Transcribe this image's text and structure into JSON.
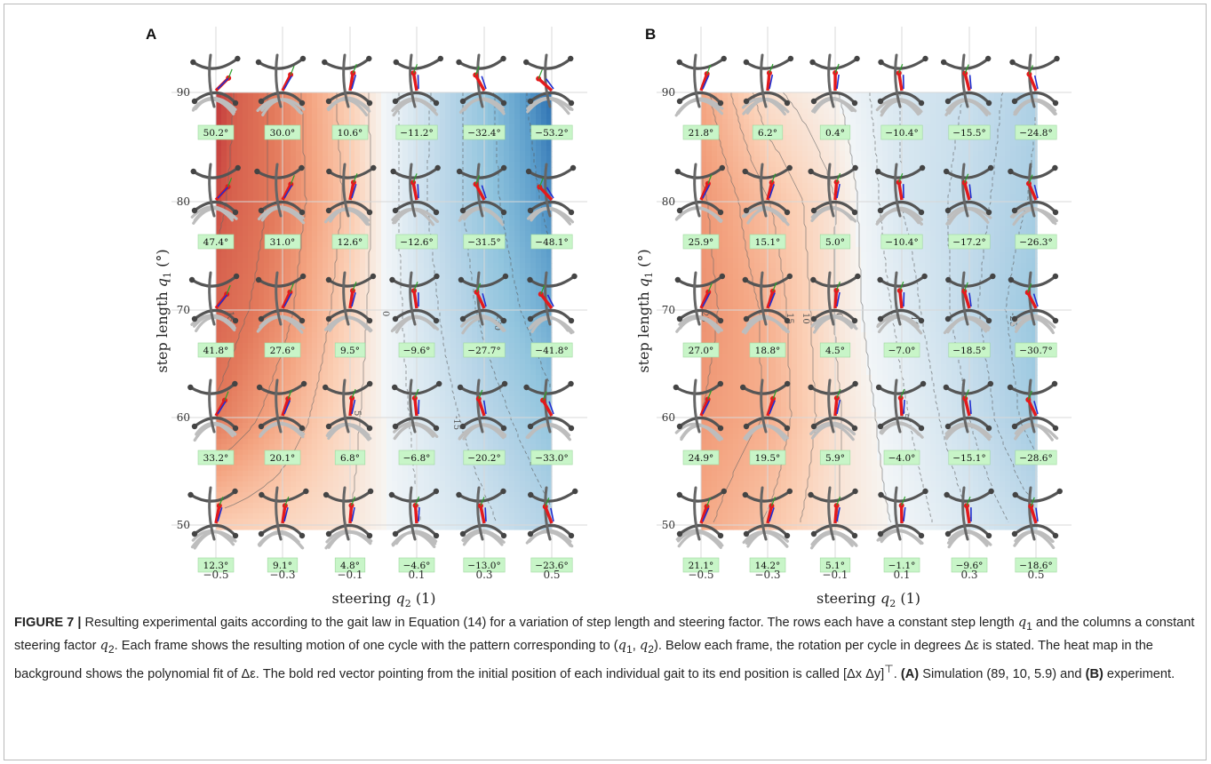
{
  "figure": {
    "panels": [
      {
        "letter": "A",
        "ylabel_main": "step length ",
        "ylabel_var": "q",
        "ylabel_sub": "1",
        "ylabel_unit": " (°)",
        "xlabel_main": "steering ",
        "xlabel_var": "q",
        "xlabel_sub": "2",
        "xlabel_unit": " (1)",
        "x_ticks": [
          "−0.5",
          "−0.3",
          "−0.1",
          "0.1",
          "0.3",
          "0.5"
        ],
        "y_ticks": [
          "50",
          "60",
          "70",
          "80",
          "90"
        ],
        "contour_labels": [
          "0",
          "15",
          "5",
          "-15",
          "-30",
          "15",
          "30"
        ],
        "rotation_labels": [
          [
            "50.2°",
            "30.0°",
            "10.6°",
            "−11.2°",
            "−32.4°",
            "−53.2°"
          ],
          [
            "47.4°",
            "31.0°",
            "12.6°",
            "−12.6°",
            "−31.5°",
            "−48.1°"
          ],
          [
            "41.8°",
            "27.6°",
            "9.5°",
            "−9.6°",
            "−27.7°",
            "−41.8°"
          ],
          [
            "33.2°",
            "20.1°",
            "6.8°",
            "−6.8°",
            "−20.2°",
            "−33.0°"
          ],
          [
            "12.3°",
            "9.1°",
            "4.8°",
            "−4.6°",
            "−13.0°",
            "−23.6°"
          ]
        ]
      },
      {
        "letter": "B",
        "ylabel_main": "step length ",
        "ylabel_var": "q",
        "ylabel_sub": "1",
        "ylabel_unit": " (°)",
        "xlabel_main": "steering ",
        "xlabel_var": "q",
        "xlabel_sub": "2",
        "xlabel_unit": " (1)",
        "x_ticks": [
          "−0.5",
          "−0.3",
          "−0.1",
          "0.1",
          "0.3",
          "0.5"
        ],
        "y_ticks": [
          "50",
          "60",
          "70",
          "80",
          "90"
        ],
        "contour_labels": [
          "25",
          "15",
          "10",
          "0",
          "-10",
          "-25",
          "-5"
        ],
        "rotation_labels": [
          [
            "21.8°",
            "6.2°",
            "0.4°",
            "−10.4°",
            "−15.5°",
            "−24.8°"
          ],
          [
            "25.9°",
            "15.1°",
            "5.0°",
            "−10.4°",
            "−17.2°",
            "−26.3°"
          ],
          [
            "27.0°",
            "18.8°",
            "4.5°",
            "−7.0°",
            "−18.5°",
            "−30.7°"
          ],
          [
            "24.9°",
            "19.5°",
            "5.9°",
            "−4.0°",
            "−15.1°",
            "−28.6°"
          ],
          [
            "21.1°",
            "14.2°",
            "5.1°",
            "−1.1°",
            "−9.6°",
            "−18.6°"
          ]
        ]
      }
    ]
  },
  "chart_data": [
    {
      "type": "heatmap",
      "panel": "A",
      "xlabel": "steering q2 (1)",
      "ylabel": "step length q1 (°)",
      "x": [
        -0.5,
        -0.3,
        -0.1,
        0.1,
        0.3,
        0.5
      ],
      "y": [
        90,
        80,
        70,
        60,
        50
      ],
      "values": [
        [
          50.2,
          30.0,
          10.6,
          -11.2,
          -32.4,
          -53.2
        ],
        [
          47.4,
          31.0,
          12.6,
          -12.6,
          -31.5,
          -48.1
        ],
        [
          41.8,
          27.6,
          9.5,
          -9.6,
          -27.7,
          -41.8
        ],
        [
          33.2,
          20.1,
          6.8,
          -6.8,
          -20.2,
          -33.0
        ],
        [
          12.3,
          9.1,
          4.8,
          -4.6,
          -13.0,
          -23.6
        ]
      ],
      "xlim": [
        -0.5,
        0.5
      ],
      "ylim": [
        50,
        90
      ],
      "grid": true
    },
    {
      "type": "heatmap",
      "panel": "B",
      "xlabel": "steering q2 (1)",
      "ylabel": "step length q1 (°)",
      "x": [
        -0.5,
        -0.3,
        -0.1,
        0.1,
        0.3,
        0.5
      ],
      "y": [
        90,
        80,
        70,
        60,
        50
      ],
      "values": [
        [
          21.8,
          6.2,
          0.4,
          -10.4,
          -15.5,
          -24.8
        ],
        [
          25.9,
          15.1,
          5.0,
          -10.4,
          -17.2,
          -26.3
        ],
        [
          27.0,
          18.8,
          4.5,
          -7.0,
          -18.5,
          -30.7
        ],
        [
          24.9,
          19.5,
          5.9,
          -4.0,
          -15.1,
          -28.6
        ],
        [
          21.1,
          14.2,
          5.1,
          -1.1,
          -9.6,
          -18.6
        ]
      ],
      "xlim": [
        -0.5,
        0.5
      ],
      "ylim": [
        50,
        90
      ],
      "grid": true
    }
  ],
  "caption": {
    "label": "FIGURE 7 |",
    "t1": " Resulting experimental gaits according to the gait law in Equation (14) for a variation of step length and steering factor. The rows each have a constant step length ",
    "q1": "q",
    "q1sub": "1",
    "t2": " and the columns a constant steering factor ",
    "q2": "q",
    "q2sub": "2",
    "t3": ". Each frame shows the resulting motion of one cycle with the pattern corresponding to (",
    "t4": "). Below each frame, the rotation per cycle in degrees Δε is stated. The heat map in the background shows the polynomial fit of Δε. The bold red vector pointing from the initial position of each individual gait to its end position is called [Δx Δy]",
    "sup": "⊤",
    "t5": ". ",
    "a_label": "(A)",
    "t6": " Simulation (89, 10, 5.9) and ",
    "b_label": "(B)",
    "t7": " experiment."
  },
  "colors": {
    "red_strong": "#b2182b",
    "blue_strong": "#2166ac",
    "label_bg": "#c8f5c8",
    "vector_red": "#e31a1c",
    "vector_blue": "#1f2fd0"
  }
}
